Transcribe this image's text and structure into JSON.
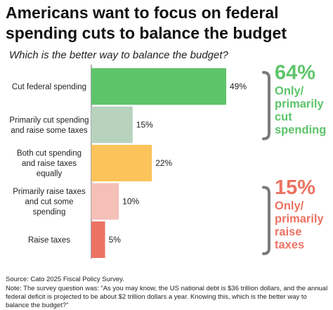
{
  "title": "Americans want to focus on federal spending cuts to balance the budget",
  "subtitle": "Which is the better way to balance the budget?",
  "chart_data": {
    "type": "bar",
    "orientation": "horizontal",
    "categories": [
      [
        "Cut federal spending"
      ],
      [
        "Primarily cut spending",
        "and raise some taxes"
      ],
      [
        "Both cut spending",
        "and raise taxes",
        "equally"
      ],
      [
        "Primarily raise taxes",
        "and cut some",
        "spending"
      ],
      [
        "Raise taxes"
      ]
    ],
    "values": [
      49,
      15,
      22,
      10,
      5
    ],
    "value_labels": [
      "49%",
      "15%",
      "22%",
      "10%",
      "5%"
    ],
    "colors": [
      "#5ec46b",
      "#b7d3bd",
      "#fcc35a",
      "#f4c0b8",
      "#ec7263"
    ],
    "xlim": [
      0,
      50
    ],
    "annotations": [
      {
        "pct": "64%",
        "text": [
          "Only/",
          "primarily",
          "cut",
          "spending"
        ],
        "color": "#5ec46b",
        "bars": [
          0,
          1
        ]
      },
      {
        "pct": "15%",
        "text": [
          "Only/",
          "primarily",
          "raise",
          "taxes"
        ],
        "color": "#ec7263",
        "bars": [
          3,
          4
        ]
      }
    ]
  },
  "footer": {
    "source": "Source: Cato 2025 Fiscal Policy Survey.",
    "note": "Note: The survey question was: “As you may know, the US national debt is $36 trillion dollars, and the annual federal deficit is projected to be about $2 trillion dollars a year. Knowing this, which is the better way to balance the budget?”"
  }
}
